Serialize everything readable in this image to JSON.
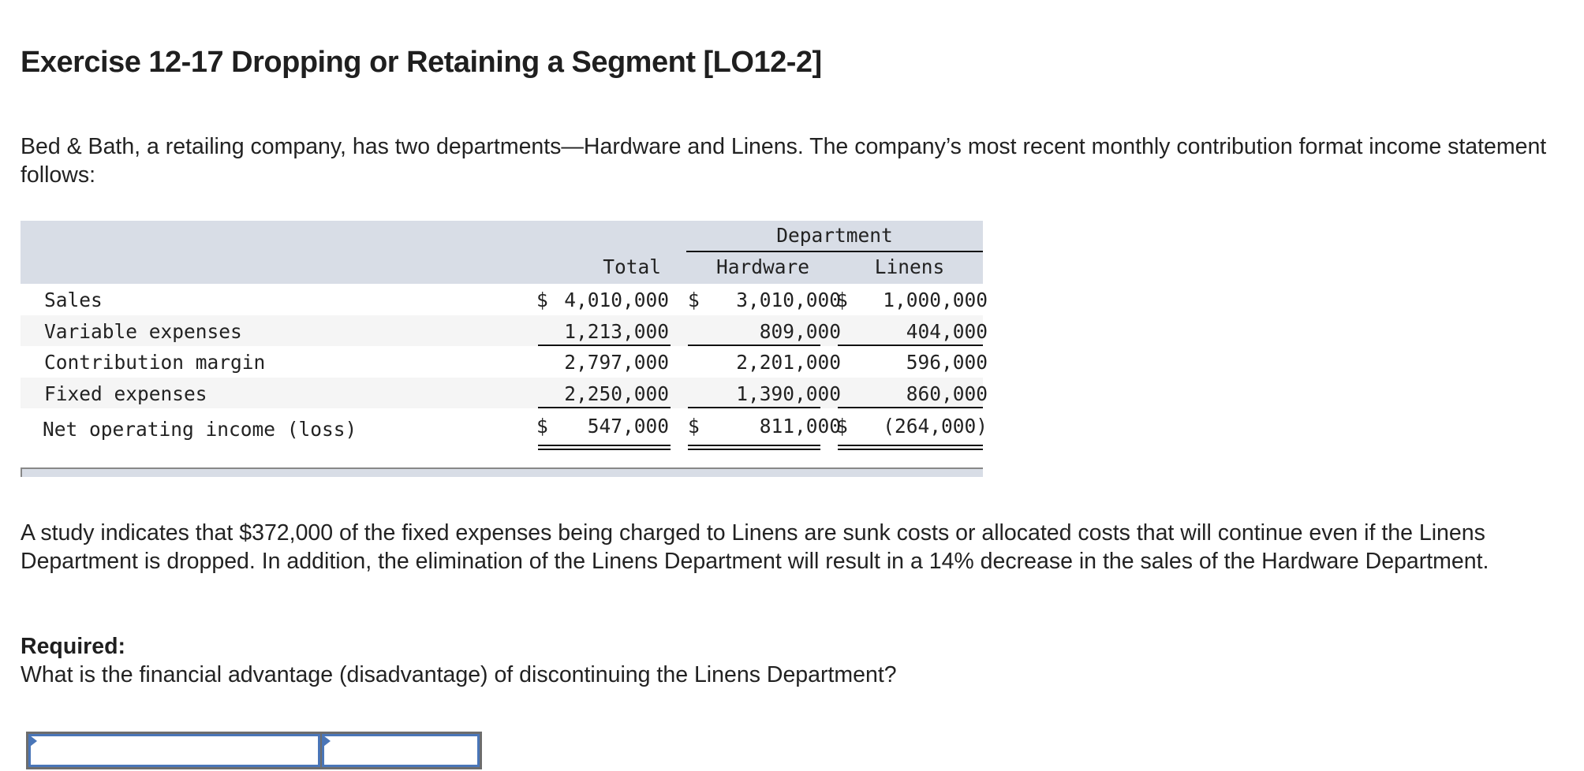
{
  "title": "Exercise 12-17 Dropping or Retaining a Segment [LO12-2]",
  "intro": "Bed & Bath, a retailing company, has two departments—Hardware and Linens. The company’s most recent monthly contribution format income statement follows:",
  "statement": {
    "group_header": "Department",
    "columns": [
      "Total",
      "Hardware",
      "Linens"
    ],
    "rows": [
      {
        "label": "Sales",
        "total": "4,010,000",
        "hardware": "3,010,000",
        "linens": "1,000,000",
        "dollar_sign": "$"
      },
      {
        "label": "Variable expenses",
        "total": "1,213,000",
        "hardware": "809,000",
        "linens": "404,000"
      },
      {
        "label": "Contribution margin",
        "total": "2,797,000",
        "hardware": "2,201,000",
        "linens": "596,000"
      },
      {
        "label": "Fixed expenses",
        "total": "2,250,000",
        "hardware": "1,390,000",
        "linens": "860,000"
      },
      {
        "label": "Net operating income (loss)",
        "total": "547,000",
        "hardware": "811,000",
        "linens": "(264,000)",
        "dollar_sign": "$"
      }
    ]
  },
  "study": "A study indicates that $372,000 of the fixed expenses being charged to Linens are sunk costs or allocated costs that will continue even if the Linens Department is dropped. In addition, the elimination of the Linens Department will result in a 14% decrease in the sales of the Hardware Department.",
  "required": {
    "label": "Required:",
    "question": "What is the financial advantage (disadvantage) of discontinuing the Linens Department?"
  },
  "answer": {
    "label_field_value": "",
    "amount_field_value": ""
  },
  "colors": {
    "header_bg": "#d8dde6",
    "row_shade": "#f5f5f5",
    "input_border": "#4a76b8"
  }
}
